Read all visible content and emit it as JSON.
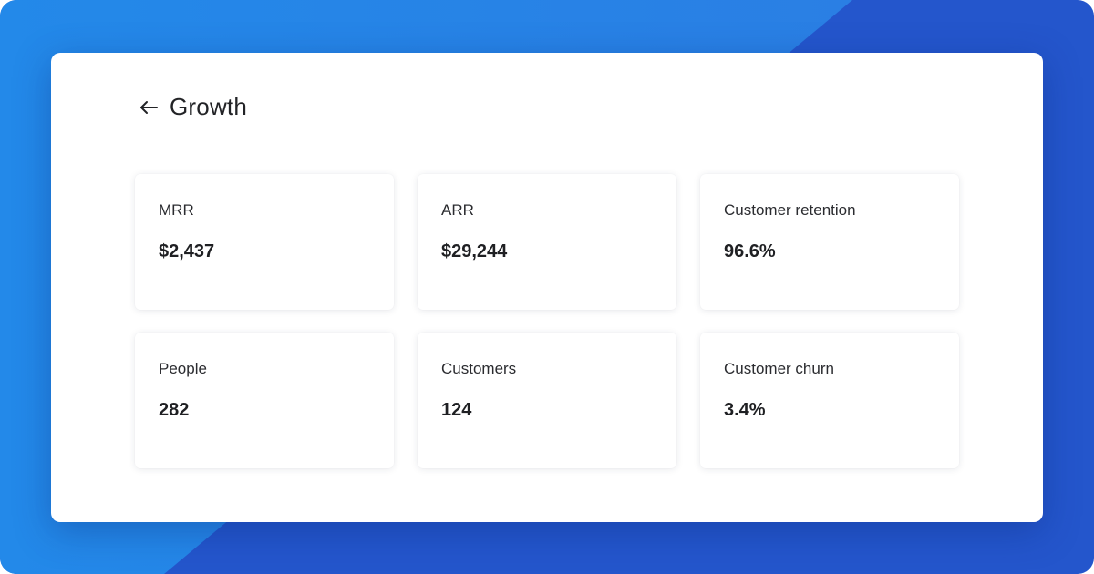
{
  "header": {
    "back_icon": "arrow-left-icon",
    "title": "Growth"
  },
  "metrics": [
    {
      "label": "MRR",
      "value": "$2,437"
    },
    {
      "label": "ARR",
      "value": "$29,244"
    },
    {
      "label": "Customer retention",
      "value": "96.6%"
    },
    {
      "label": "People",
      "value": "282"
    },
    {
      "label": "Customers",
      "value": "124"
    },
    {
      "label": "Customer churn",
      "value": "3.4%"
    }
  ],
  "colors": {
    "background_primary": "#2456cc",
    "background_secondary": "#2589e8",
    "card": "#ffffff",
    "text": "#222326"
  }
}
